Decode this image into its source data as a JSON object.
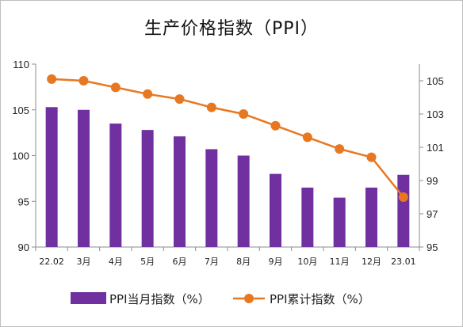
{
  "chart_data": {
    "type": "bar+line",
    "title": "生产价格指数（PPI）",
    "categories": [
      "22.02",
      "3月",
      "4月",
      "5月",
      "6月",
      "7月",
      "8月",
      "9月",
      "10月",
      "11月",
      "12月",
      "23.01"
    ],
    "series": [
      {
        "name": "PPI当月指数（%）",
        "type": "bar",
        "axis": "left",
        "color": "#7030a0",
        "values": [
          105.3,
          105.0,
          103.5,
          102.8,
          102.1,
          100.7,
          100.0,
          98.0,
          96.5,
          95.4,
          96.5,
          97.9
        ]
      },
      {
        "name": "PPI累计指数（%）",
        "type": "line",
        "axis": "right",
        "color": "#e87722",
        "values": [
          105.1,
          105.0,
          104.6,
          104.2,
          103.9,
          103.4,
          103.0,
          102.3,
          101.6,
          100.9,
          100.4,
          98.0
        ]
      }
    ],
    "y_left": {
      "min": 90,
      "max": 110,
      "ticks": [
        90,
        95,
        100,
        105,
        110
      ]
    },
    "y_right": {
      "min": 95,
      "max": 106,
      "ticks": [
        95,
        97,
        99,
        101,
        103,
        105
      ]
    },
    "grid": false,
    "legend": "bottom"
  }
}
